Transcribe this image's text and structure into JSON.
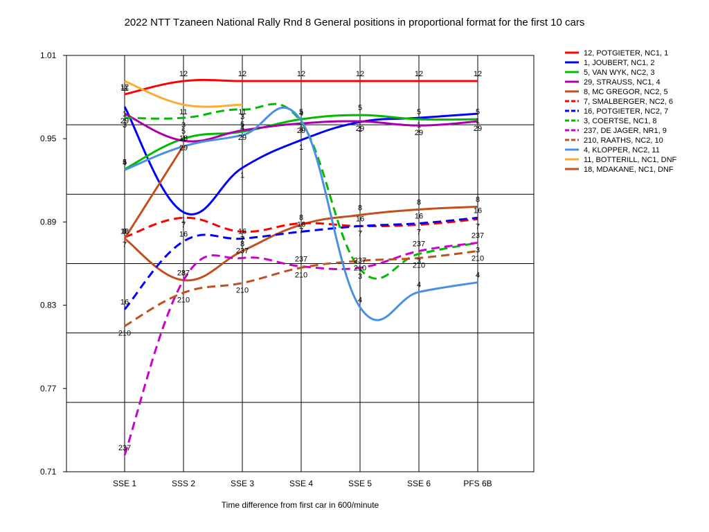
{
  "chart_data": {
    "type": "line",
    "title": "2022 NTT Tzaneen National Rally Rnd 8  General positions in proportional format for the first 10 cars",
    "xlabel": "Time difference from first car in 600/minute",
    "ylabel": "",
    "categories": [
      "SSE 1",
      "SSS 2",
      "SSE 3",
      "SSE 4",
      "SSE 5",
      "SSE 6",
      "PFS 6B"
    ],
    "ylim": [
      0.71,
      1.01
    ],
    "yticks": [
      "0.71",
      "0.77",
      "0.83",
      "0.89",
      "0.95",
      "1.01"
    ],
    "grid": "horizontal lines at each 0.05 step plus a vertical line at every category",
    "legend_position": "right",
    "series": [
      {
        "name": "12, POTGIETER, NC1, 1",
        "label": "12",
        "color": "#ff0000",
        "dash": false,
        "values": [
          0.982,
          0.9915,
          0.9915,
          0.9915,
          0.9915,
          0.9915,
          0.9915
        ]
      },
      {
        "name": "1, JOUBERT, NC1, 2",
        "label": "1",
        "color": "#0000ff",
        "dash": false,
        "values": [
          0.973,
          0.897,
          0.929,
          0.949,
          0.962,
          0.965,
          0.968
        ]
      },
      {
        "name": "5, VAN WYK, NC2, 3",
        "label": "5",
        "color": "#00bb00",
        "dash": false,
        "values": [
          0.928,
          0.95,
          0.955,
          0.964,
          0.967,
          0.964,
          0.964
        ]
      },
      {
        "name": "29, STRAUSS, NC1, 4",
        "label": "29",
        "color": "#aa00aa",
        "dash": false,
        "values": [
          0.968,
          0.9485,
          0.956,
          0.961,
          0.9625,
          0.9595,
          0.9625
        ]
      },
      {
        "name": "8, MC GREGOR, NC2, 5",
        "label": "8",
        "color": "#c0501e",
        "dash": false,
        "values": [
          0.878,
          0.848,
          0.869,
          0.888,
          0.895,
          0.899,
          0.901
        ]
      },
      {
        "name": "7, SMALBERGER, NC2, 6",
        "label": "7",
        "color": "#ff0000",
        "dash": true,
        "values": [
          0.879,
          0.893,
          0.883,
          0.889,
          0.887,
          0.888,
          0.892
        ]
      },
      {
        "name": "16, POTGIETER, NC2, 7",
        "label": "16",
        "color": "#0000ff",
        "dash": true,
        "values": [
          0.827,
          0.876,
          0.878,
          0.883,
          0.887,
          0.889,
          0.893
        ]
      },
      {
        "name": "3, COERTSE, NC1, 8",
        "label": "3",
        "color": "#00bb00",
        "dash": true,
        "values": [
          0.965,
          0.965,
          0.971,
          0.962,
          0.856,
          0.867,
          0.875
        ]
      },
      {
        "name": "237, DE JAGER, NR1, 9",
        "label": "237",
        "color": "#cc00cc",
        "dash": true,
        "values": [
          0.722,
          0.848,
          0.864,
          0.858,
          0.857,
          0.869,
          0.875
        ]
      },
      {
        "name": "210, RAATHS, NC2, 10",
        "label": "210",
        "color": "#c0501e",
        "dash": true,
        "values": [
          0.815,
          0.839,
          0.846,
          0.857,
          0.862,
          0.864,
          0.869
        ]
      },
      {
        "name": "4, KLOPPER, NC2, 11",
        "label": "4",
        "color": "#4a90e2",
        "dash": false,
        "values": [
          0.9275,
          0.9445,
          0.9525,
          0.963,
          0.8285,
          0.8395,
          0.8465
        ]
      },
      {
        "name": "11, BOTTERILL, NC1, DNF",
        "label": "11",
        "color": "#ffaa33",
        "dash": false,
        "values": [
          0.9915,
          0.9745,
          0.9745,
          null,
          null,
          null,
          null
        ]
      },
      {
        "name": "18, MDAKANE, NC1, DNF",
        "label": "18",
        "color": "#c0501e",
        "dash": false,
        "values": [
          0.878,
          0.945,
          null,
          null,
          null,
          null,
          null
        ]
      }
    ]
  }
}
